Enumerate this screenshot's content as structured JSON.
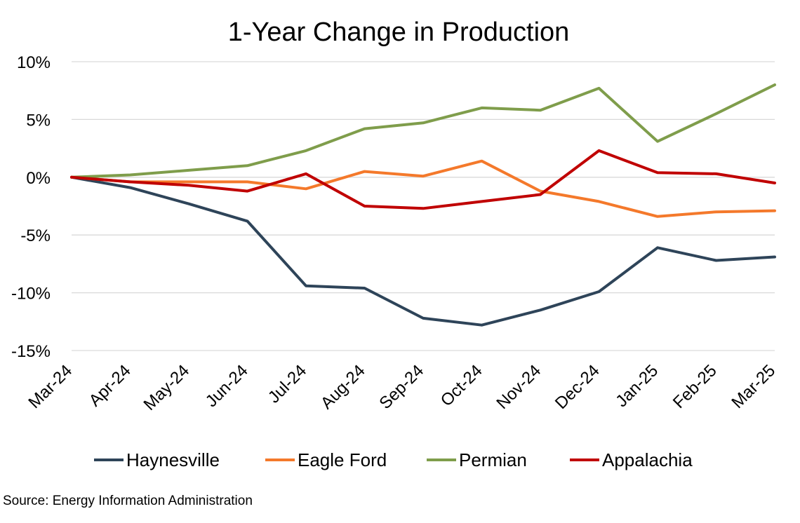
{
  "chart_data": {
    "type": "line",
    "title": "1-Year Change in Production",
    "xlabel": "",
    "ylabel": "",
    "categories": [
      "Mar-24",
      "Apr-24",
      "May-24",
      "Jun-24",
      "Jul-24",
      "Aug-24",
      "Sep-24",
      "Oct-24",
      "Nov-24",
      "Dec-24",
      "Jan-25",
      "Feb-25",
      "Mar-25"
    ],
    "ylim": [
      -15,
      10
    ],
    "yticks": [
      10,
      5,
      0,
      -5,
      -10,
      -15
    ],
    "ytick_labels": [
      "10%",
      "5%",
      "0%",
      "-5%",
      "-10%",
      "-15%"
    ],
    "grid": true,
    "legend_position": "bottom",
    "series": [
      {
        "name": "Haynesville",
        "color": "#2e4459",
        "values": [
          0.0,
          -0.9,
          -2.3,
          -3.8,
          -9.4,
          -9.6,
          -12.2,
          -12.8,
          -11.5,
          -9.9,
          -6.1,
          -7.2,
          -6.9
        ]
      },
      {
        "name": "Eagle Ford",
        "color": "#f4792b",
        "values": [
          0.0,
          -0.4,
          -0.4,
          -0.4,
          -1.0,
          0.5,
          0.1,
          1.4,
          -1.2,
          -2.1,
          -3.4,
          -3.0,
          -2.9
        ]
      },
      {
        "name": "Permian",
        "color": "#7f9d4b",
        "values": [
          0.0,
          0.2,
          0.6,
          1.0,
          2.3,
          4.2,
          4.7,
          6.0,
          5.8,
          7.7,
          3.1,
          5.5,
          8.0
        ]
      },
      {
        "name": "Appalachia",
        "color": "#c00000",
        "values": [
          0.0,
          -0.4,
          -0.7,
          -1.2,
          0.3,
          -2.5,
          -2.7,
          -2.1,
          -1.5,
          2.3,
          0.4,
          0.3,
          -0.5
        ]
      }
    ]
  },
  "source": "Source: Energy Information Administration"
}
